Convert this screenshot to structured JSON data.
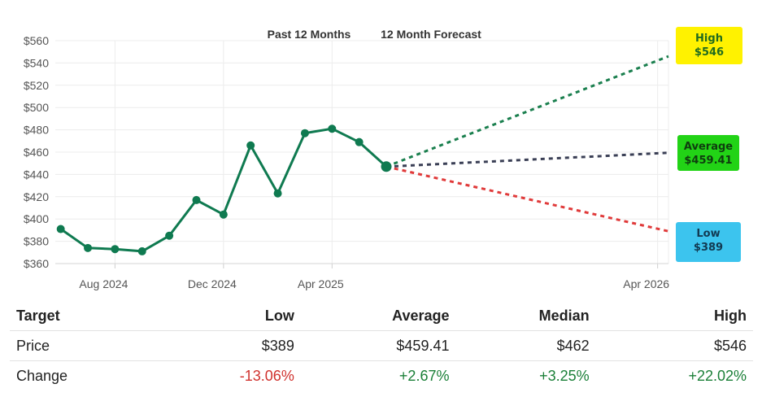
{
  "chart_data": {
    "type": "line",
    "headers": [
      "Past 12 Months",
      "12 Month Forecast"
    ],
    "y_ticks": [
      "$560",
      "$540",
      "$520",
      "$500",
      "$480",
      "$460",
      "$440",
      "$420",
      "$400",
      "$380",
      "$360"
    ],
    "y_tick_values": [
      560,
      540,
      520,
      500,
      480,
      460,
      440,
      420,
      400,
      380,
      360
    ],
    "ylim": [
      360,
      560
    ],
    "x_ticks": [
      {
        "label": "Aug 2024",
        "month_index": 2
      },
      {
        "label": "Dec 2024",
        "month_index": 6
      },
      {
        "label": "Apr 2025",
        "month_index": 10
      },
      {
        "label": "Apr 2026",
        "month_index": 22
      }
    ],
    "x_range_months": [
      -0.2,
      22.4
    ],
    "series": [
      {
        "name": "Past 12 Months",
        "color": "#0f7a50",
        "points": [
          {
            "m": 0,
            "v": 391
          },
          {
            "m": 1,
            "v": 374
          },
          {
            "m": 2,
            "v": 373
          },
          {
            "m": 3,
            "v": 371
          },
          {
            "m": 4,
            "v": 385
          },
          {
            "m": 5,
            "v": 417
          },
          {
            "m": 6,
            "v": 404
          },
          {
            "m": 7,
            "v": 466
          },
          {
            "m": 8,
            "v": 423
          },
          {
            "m": 9,
            "v": 477
          },
          {
            "m": 10,
            "v": 481
          },
          {
            "m": 11,
            "v": 469
          },
          {
            "m": 12,
            "v": 447
          }
        ]
      }
    ],
    "forecast": {
      "start": {
        "m": 12,
        "v": 447
      },
      "end_month": 22.4,
      "lines": [
        {
          "name": "High",
          "value": 546,
          "label": "$546",
          "color": "#1a7f4e",
          "badge_bg": "#fff200",
          "badge_fg": "#1f6b1f"
        },
        {
          "name": "Average",
          "value": 459.41,
          "label": "$459.41",
          "color": "#3a3f55",
          "badge_bg": "#22d316",
          "badge_fg": "#0f3d0f"
        },
        {
          "name": "Low",
          "value": 389,
          "label": "$389",
          "color": "#e03a3a",
          "badge_bg": "#3cc4ee",
          "badge_fg": "#123a52"
        }
      ]
    },
    "grid": true
  },
  "table": {
    "headers": [
      "Target",
      "Low",
      "Average",
      "Median",
      "High"
    ],
    "rows": [
      {
        "label": "Price",
        "low": "$389",
        "average": "$459.41",
        "median": "$462",
        "high": "$546"
      },
      {
        "label": "Change",
        "low": "-13.06%",
        "average": "+2.67%",
        "median": "+3.25%",
        "high": "+22.02%"
      }
    ]
  }
}
